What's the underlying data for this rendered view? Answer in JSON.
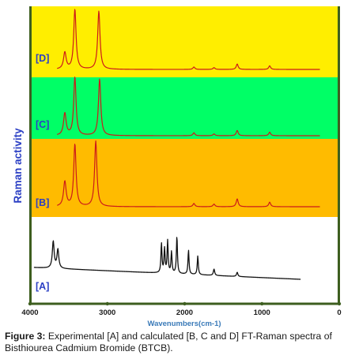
{
  "chart_data": {
    "type": "line",
    "ylabel": "Raman activity",
    "xlabel": "Wavenumbers(cm-1)",
    "x_ticks": [
      4000,
      3000,
      2000,
      1000,
      0
    ],
    "xlim": [
      4000,
      0
    ],
    "grid": false,
    "panels": [
      {
        "label": "[D]",
        "background": "#ffee00",
        "line_color": "#cc1a1a",
        "x_range": [
          3650,
          250
        ],
        "peaks": [
          {
            "x": 3550,
            "h": 0.28,
            "w": 20
          },
          {
            "x": 3420,
            "h": 1.0,
            "w": 18
          },
          {
            "x": 3110,
            "h": 0.97,
            "w": 18
          },
          {
            "x": 1880,
            "h": 0.04,
            "w": 15
          },
          {
            "x": 1620,
            "h": 0.03,
            "w": 15
          },
          {
            "x": 1320,
            "h": 0.09,
            "w": 15
          },
          {
            "x": 900,
            "h": 0.06,
            "w": 15
          }
        ]
      },
      {
        "label": "[C]",
        "background": "#00ff66",
        "line_color": "#cc1a1a",
        "x_range": [
          3650,
          250
        ],
        "peaks": [
          {
            "x": 3550,
            "h": 0.38,
            "w": 20
          },
          {
            "x": 3420,
            "h": 1.0,
            "w": 18
          },
          {
            "x": 3100,
            "h": 0.97,
            "w": 18
          },
          {
            "x": 1880,
            "h": 0.05,
            "w": 15
          },
          {
            "x": 1620,
            "h": 0.03,
            "w": 15
          },
          {
            "x": 1320,
            "h": 0.09,
            "w": 15
          },
          {
            "x": 900,
            "h": 0.06,
            "w": 15
          }
        ]
      },
      {
        "label": "[B]",
        "background": "#ffbb00",
        "line_color": "#cc1a1a",
        "x_range": [
          3650,
          250
        ],
        "peaks": [
          {
            "x": 3550,
            "h": 0.38,
            "w": 20
          },
          {
            "x": 3420,
            "h": 0.95,
            "w": 18
          },
          {
            "x": 3150,
            "h": 1.0,
            "w": 18
          },
          {
            "x": 1880,
            "h": 0.05,
            "w": 15
          },
          {
            "x": 1620,
            "h": 0.04,
            "w": 15
          },
          {
            "x": 1320,
            "h": 0.12,
            "w": 15
          },
          {
            "x": 900,
            "h": 0.07,
            "w": 15
          }
        ]
      },
      {
        "label": "[A]",
        "background": "#ffffff",
        "line_color": "#111111",
        "x_range": [
          3950,
          500
        ],
        "baseline_start": 0.22,
        "baseline_end": 0.0,
        "peaks": [
          {
            "x": 3700,
            "h": 0.5,
            "w": 14
          },
          {
            "x": 3640,
            "h": 0.35,
            "w": 14
          },
          {
            "x": 2300,
            "h": 0.55,
            "w": 8
          },
          {
            "x": 2260,
            "h": 0.45,
            "w": 8
          },
          {
            "x": 2220,
            "h": 0.6,
            "w": 8
          },
          {
            "x": 2170,
            "h": 0.4,
            "w": 8
          },
          {
            "x": 2100,
            "h": 0.7,
            "w": 8
          },
          {
            "x": 1950,
            "h": 0.45,
            "w": 8
          },
          {
            "x": 1830,
            "h": 0.35,
            "w": 8
          },
          {
            "x": 1620,
            "h": 0.12,
            "w": 10
          },
          {
            "x": 1320,
            "h": 0.08,
            "w": 10
          }
        ]
      }
    ]
  },
  "caption": {
    "lead": "Figure 3:",
    "text": " Experimental [A] and calculated [B, C and D] FT-Raman spectra of Bisthiourea Cadmium Bromide (BTCB)."
  }
}
